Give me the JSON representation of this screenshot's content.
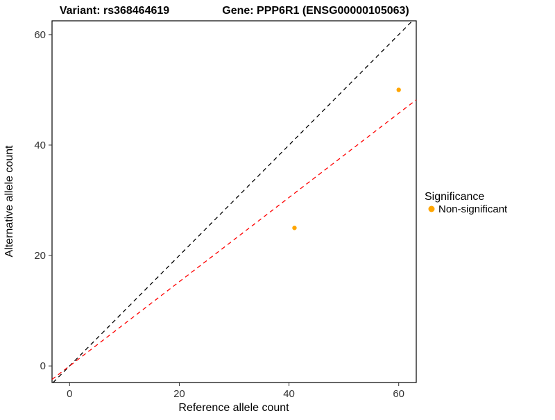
{
  "titles": {
    "left": "Variant: rs368464619",
    "right": "Gene: PPP6R1 (ENSG00000105063)"
  },
  "axes": {
    "x_label": "Reference allele count",
    "y_label": "Alternative allele count"
  },
  "legend": {
    "title": "Significance",
    "items": [
      {
        "label": "Non-significant",
        "color": "#FFA500"
      }
    ]
  },
  "chart_data": {
    "type": "scatter",
    "title": "Variant: rs368464619 / Gene: PPP6R1 (ENSG00000105063)",
    "xlabel": "Reference allele count",
    "ylabel": "Alternative allele count",
    "xlim": [
      -3.2,
      63.2
    ],
    "ylim": [
      -3,
      62.5
    ],
    "x_ticks": [
      0,
      20,
      40,
      60
    ],
    "y_ticks": [
      0,
      20,
      40,
      60
    ],
    "grid": false,
    "legend_position": "right",
    "point_color": "#FFA500",
    "point_radius": 3.2,
    "points": [
      {
        "x": 41,
        "y": 25,
        "series": "Non-significant"
      },
      {
        "x": 60,
        "y": 50,
        "series": "Non-significant"
      }
    ],
    "lines": [
      {
        "name": "identity",
        "x1": -3,
        "y1": -3,
        "x2": 62.5,
        "y2": 62.5,
        "color": "#000000",
        "dash": "6,5"
      },
      {
        "name": "fit",
        "x1": -3.2,
        "y1": -2.44,
        "x2": 63.2,
        "y2": 48.2,
        "color": "#FF0000",
        "dash": "6,5"
      }
    ]
  }
}
